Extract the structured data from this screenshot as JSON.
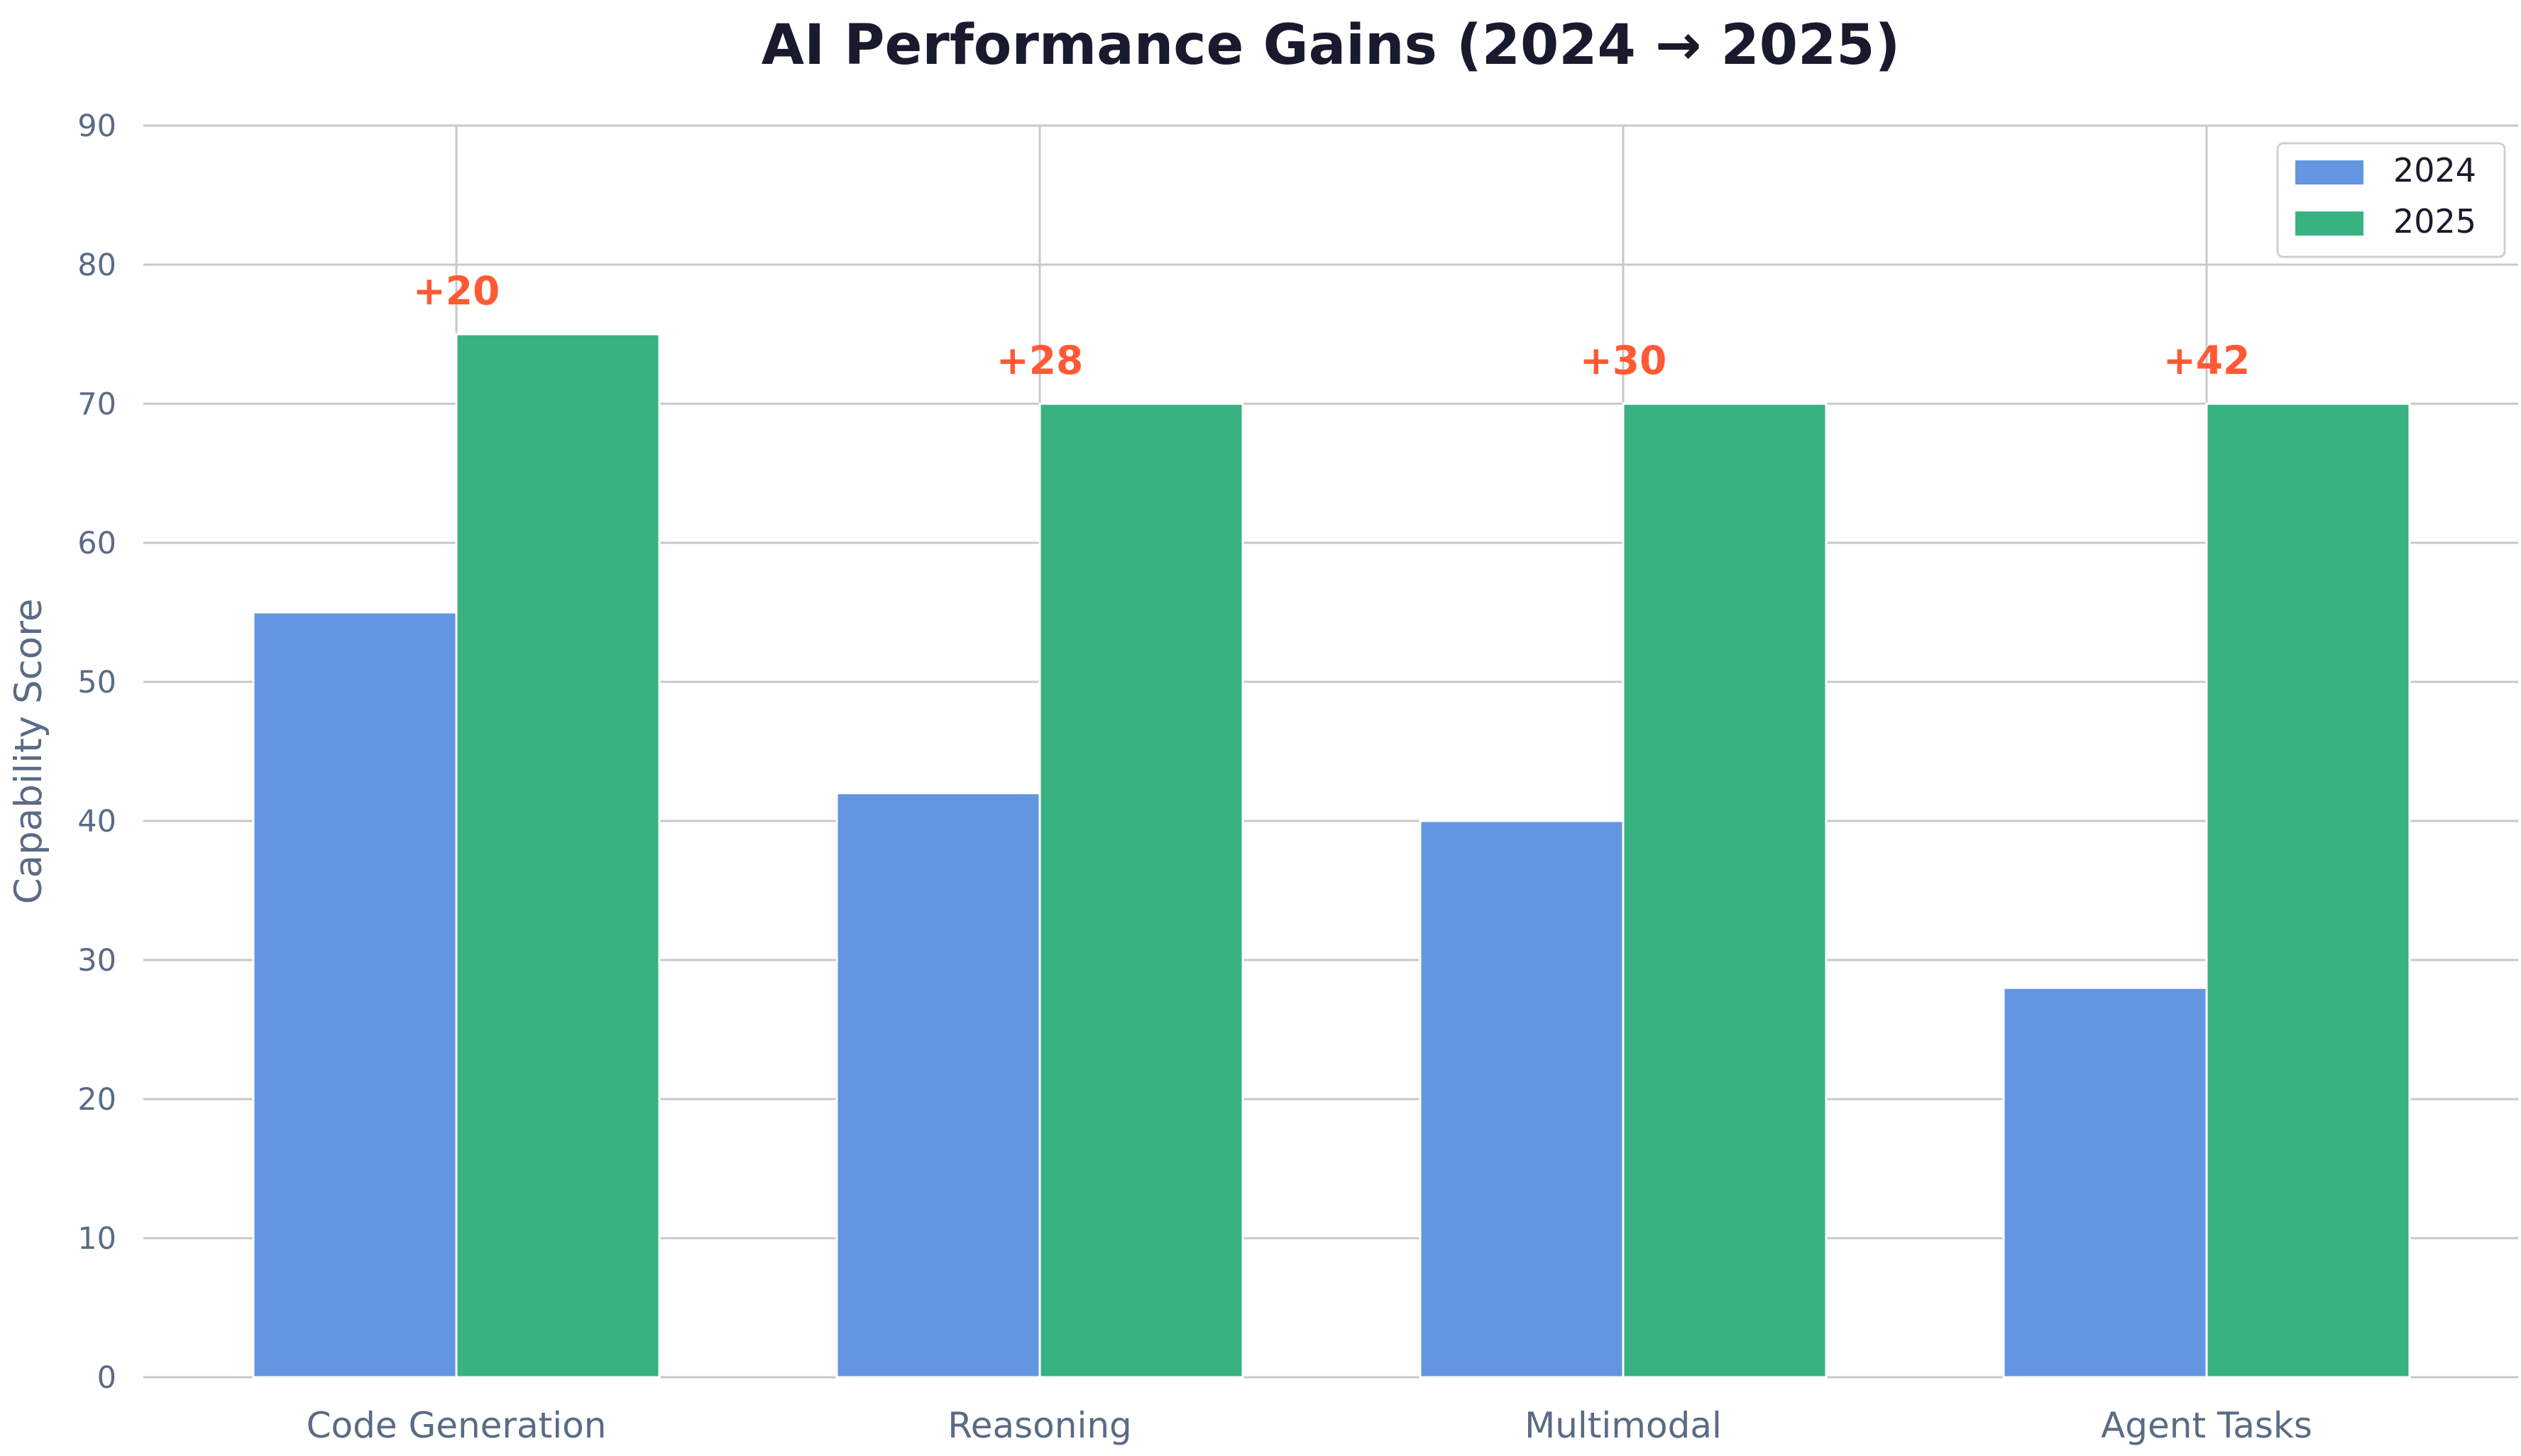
{
  "chart_data": {
    "type": "bar",
    "title": "AI Performance Gains (2024 → 2025)",
    "xlabel": "",
    "ylabel": "Capability Score",
    "categories": [
      "Code Generation",
      "Reasoning",
      "Multimodal",
      "Agent Tasks"
    ],
    "series": [
      {
        "name": "2024",
        "values": [
          55,
          42,
          40,
          28
        ],
        "color": "#6495e0"
      },
      {
        "name": "2025",
        "values": [
          75,
          70,
          70,
          70
        ],
        "color": "#38b280"
      }
    ],
    "annotations": [
      "+20",
      "+28",
      "+30",
      "+42"
    ],
    "annotation_color": "#ff5a36",
    "ylim": [
      0,
      90
    ],
    "yticks": [
      0,
      10,
      20,
      30,
      40,
      50,
      60,
      70,
      80,
      90
    ],
    "grid": true,
    "legend_position": "top-right",
    "colors": {
      "title": "#1a1a2e",
      "axis_text": "#5a6b85",
      "grid": "#c8c8c8"
    }
  }
}
